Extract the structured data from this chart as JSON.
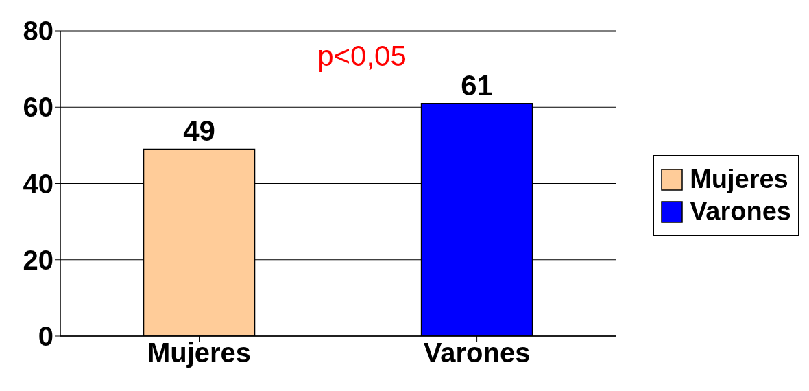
{
  "chart_data": {
    "type": "bar",
    "categories": [
      "Mujeres",
      "Varones"
    ],
    "series": [
      {
        "name": "Mujeres",
        "color": "#ffcc99",
        "values": [
          49,
          null
        ]
      },
      {
        "name": "Varones",
        "color": "#0000ff",
        "values": [
          null,
          61
        ]
      }
    ],
    "stacked": true,
    "ylim": [
      0,
      80
    ],
    "yticks": [
      0,
      20,
      40,
      60,
      80
    ],
    "grid": "y",
    "legend": "right",
    "data_labels": true,
    "annotations": [
      "p<0,05"
    ]
  }
}
